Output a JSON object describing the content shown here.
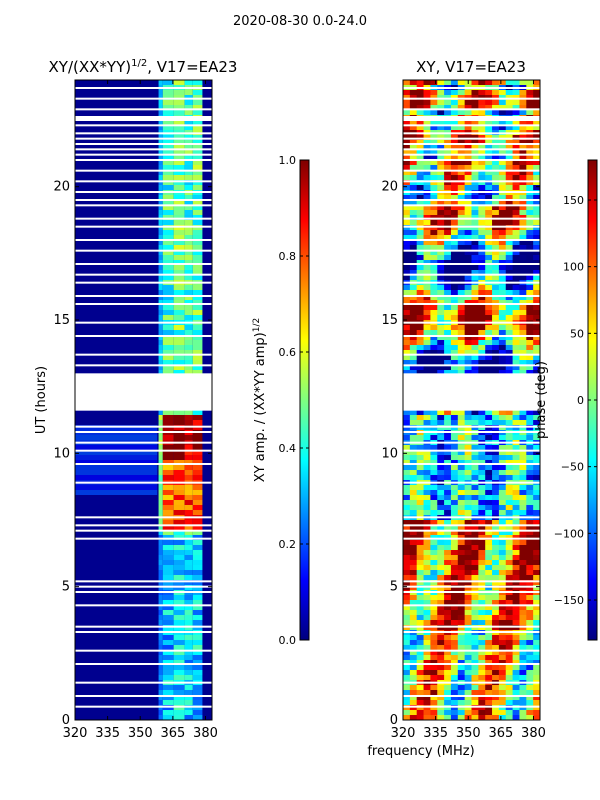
{
  "suptitle": "2020-08-30 0.0-24.0",
  "xlabel": "frequency (MHz)",
  "chart_data": [
    {
      "type": "heatmap",
      "title": "XY/(XX*YY)",
      "title_exp": "1/2",
      "title_suffix": ", V17=EA23",
      "xlabel": "frequency (MHz)",
      "ylabel": "UT (hours)",
      "xlim": [
        320,
        383
      ],
      "ylim": [
        0,
        24
      ],
      "xticks": [
        320,
        335,
        350,
        365,
        380
      ],
      "yticks": [
        0,
        5,
        10,
        15,
        20
      ],
      "colorbar": {
        "label": "XY amp. / (XX*YY amp)",
        "label_exp": "1/2",
        "range": [
          0.0,
          1.0
        ],
        "ticks": [
          "0.0",
          "0.2",
          "0.4",
          "0.6",
          "0.8",
          "1.0"
        ],
        "colormap": "jet"
      },
      "flagged_hours": [
        [
          11.6,
          13.0
        ]
      ]
    },
    {
      "type": "heatmap",
      "title": "XY, V17=EA23",
      "xlabel": "frequency (MHz)",
      "ylabel": "",
      "xlim": [
        320,
        383
      ],
      "ylim": [
        0,
        24
      ],
      "xticks": [
        320,
        335,
        350,
        365,
        380
      ],
      "yticks": [
        0,
        5,
        10,
        15,
        20
      ],
      "colorbar": {
        "label": "phase (deg)",
        "range": [
          -180,
          180
        ],
        "ticks": [
          "150",
          "100",
          "50",
          "0",
          "−50",
          "−100",
          "−150"
        ],
        "colormap": "jet"
      },
      "flagged_hours": [
        [
          11.6,
          13.0
        ]
      ]
    }
  ]
}
